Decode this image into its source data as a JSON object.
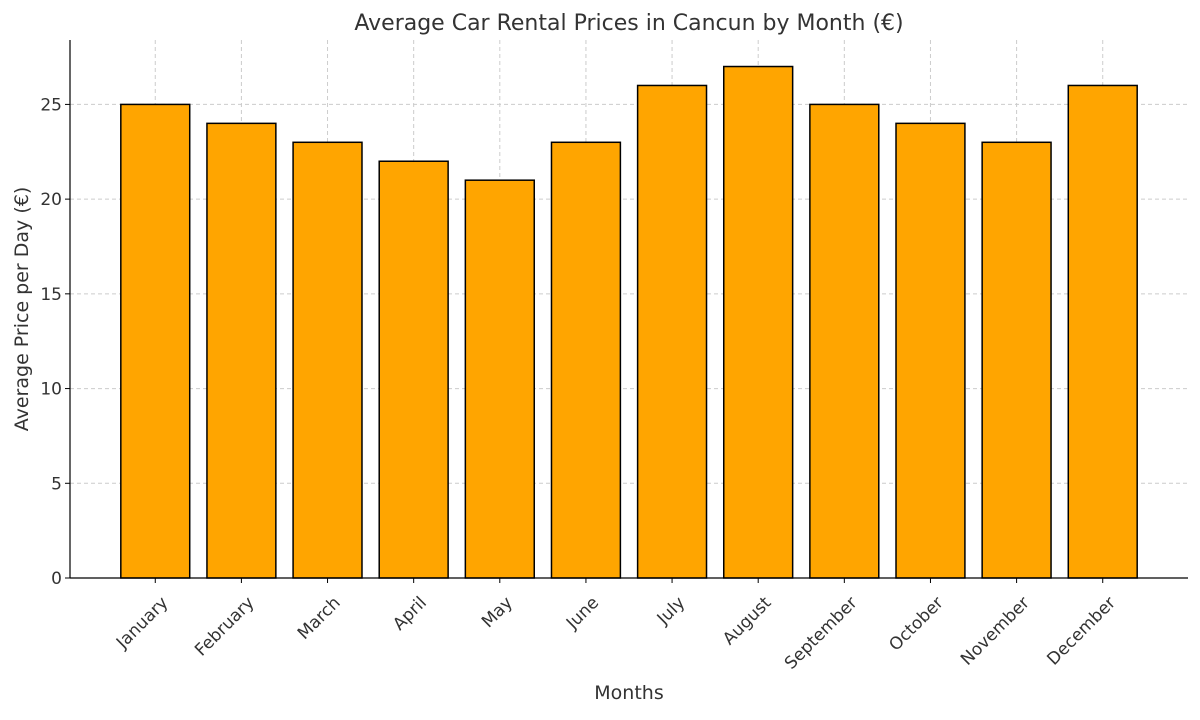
{
  "chart_data": {
    "type": "bar",
    "title": "Average Car Rental Prices in Cancun by Month (€)",
    "xlabel": "Months",
    "ylabel": "Average Price per Day (€)",
    "categories": [
      "January",
      "February",
      "March",
      "April",
      "May",
      "June",
      "July",
      "August",
      "September",
      "October",
      "November",
      "December"
    ],
    "values": [
      25,
      24,
      23,
      22,
      21,
      23,
      26,
      27,
      25,
      24,
      23,
      26
    ],
    "ylim": [
      0,
      28.4
    ],
    "yticks": [
      0,
      5,
      10,
      15,
      20,
      25
    ],
    "grid": true,
    "bar_color": "#FFA500",
    "bar_edge_color": "#000000"
  }
}
